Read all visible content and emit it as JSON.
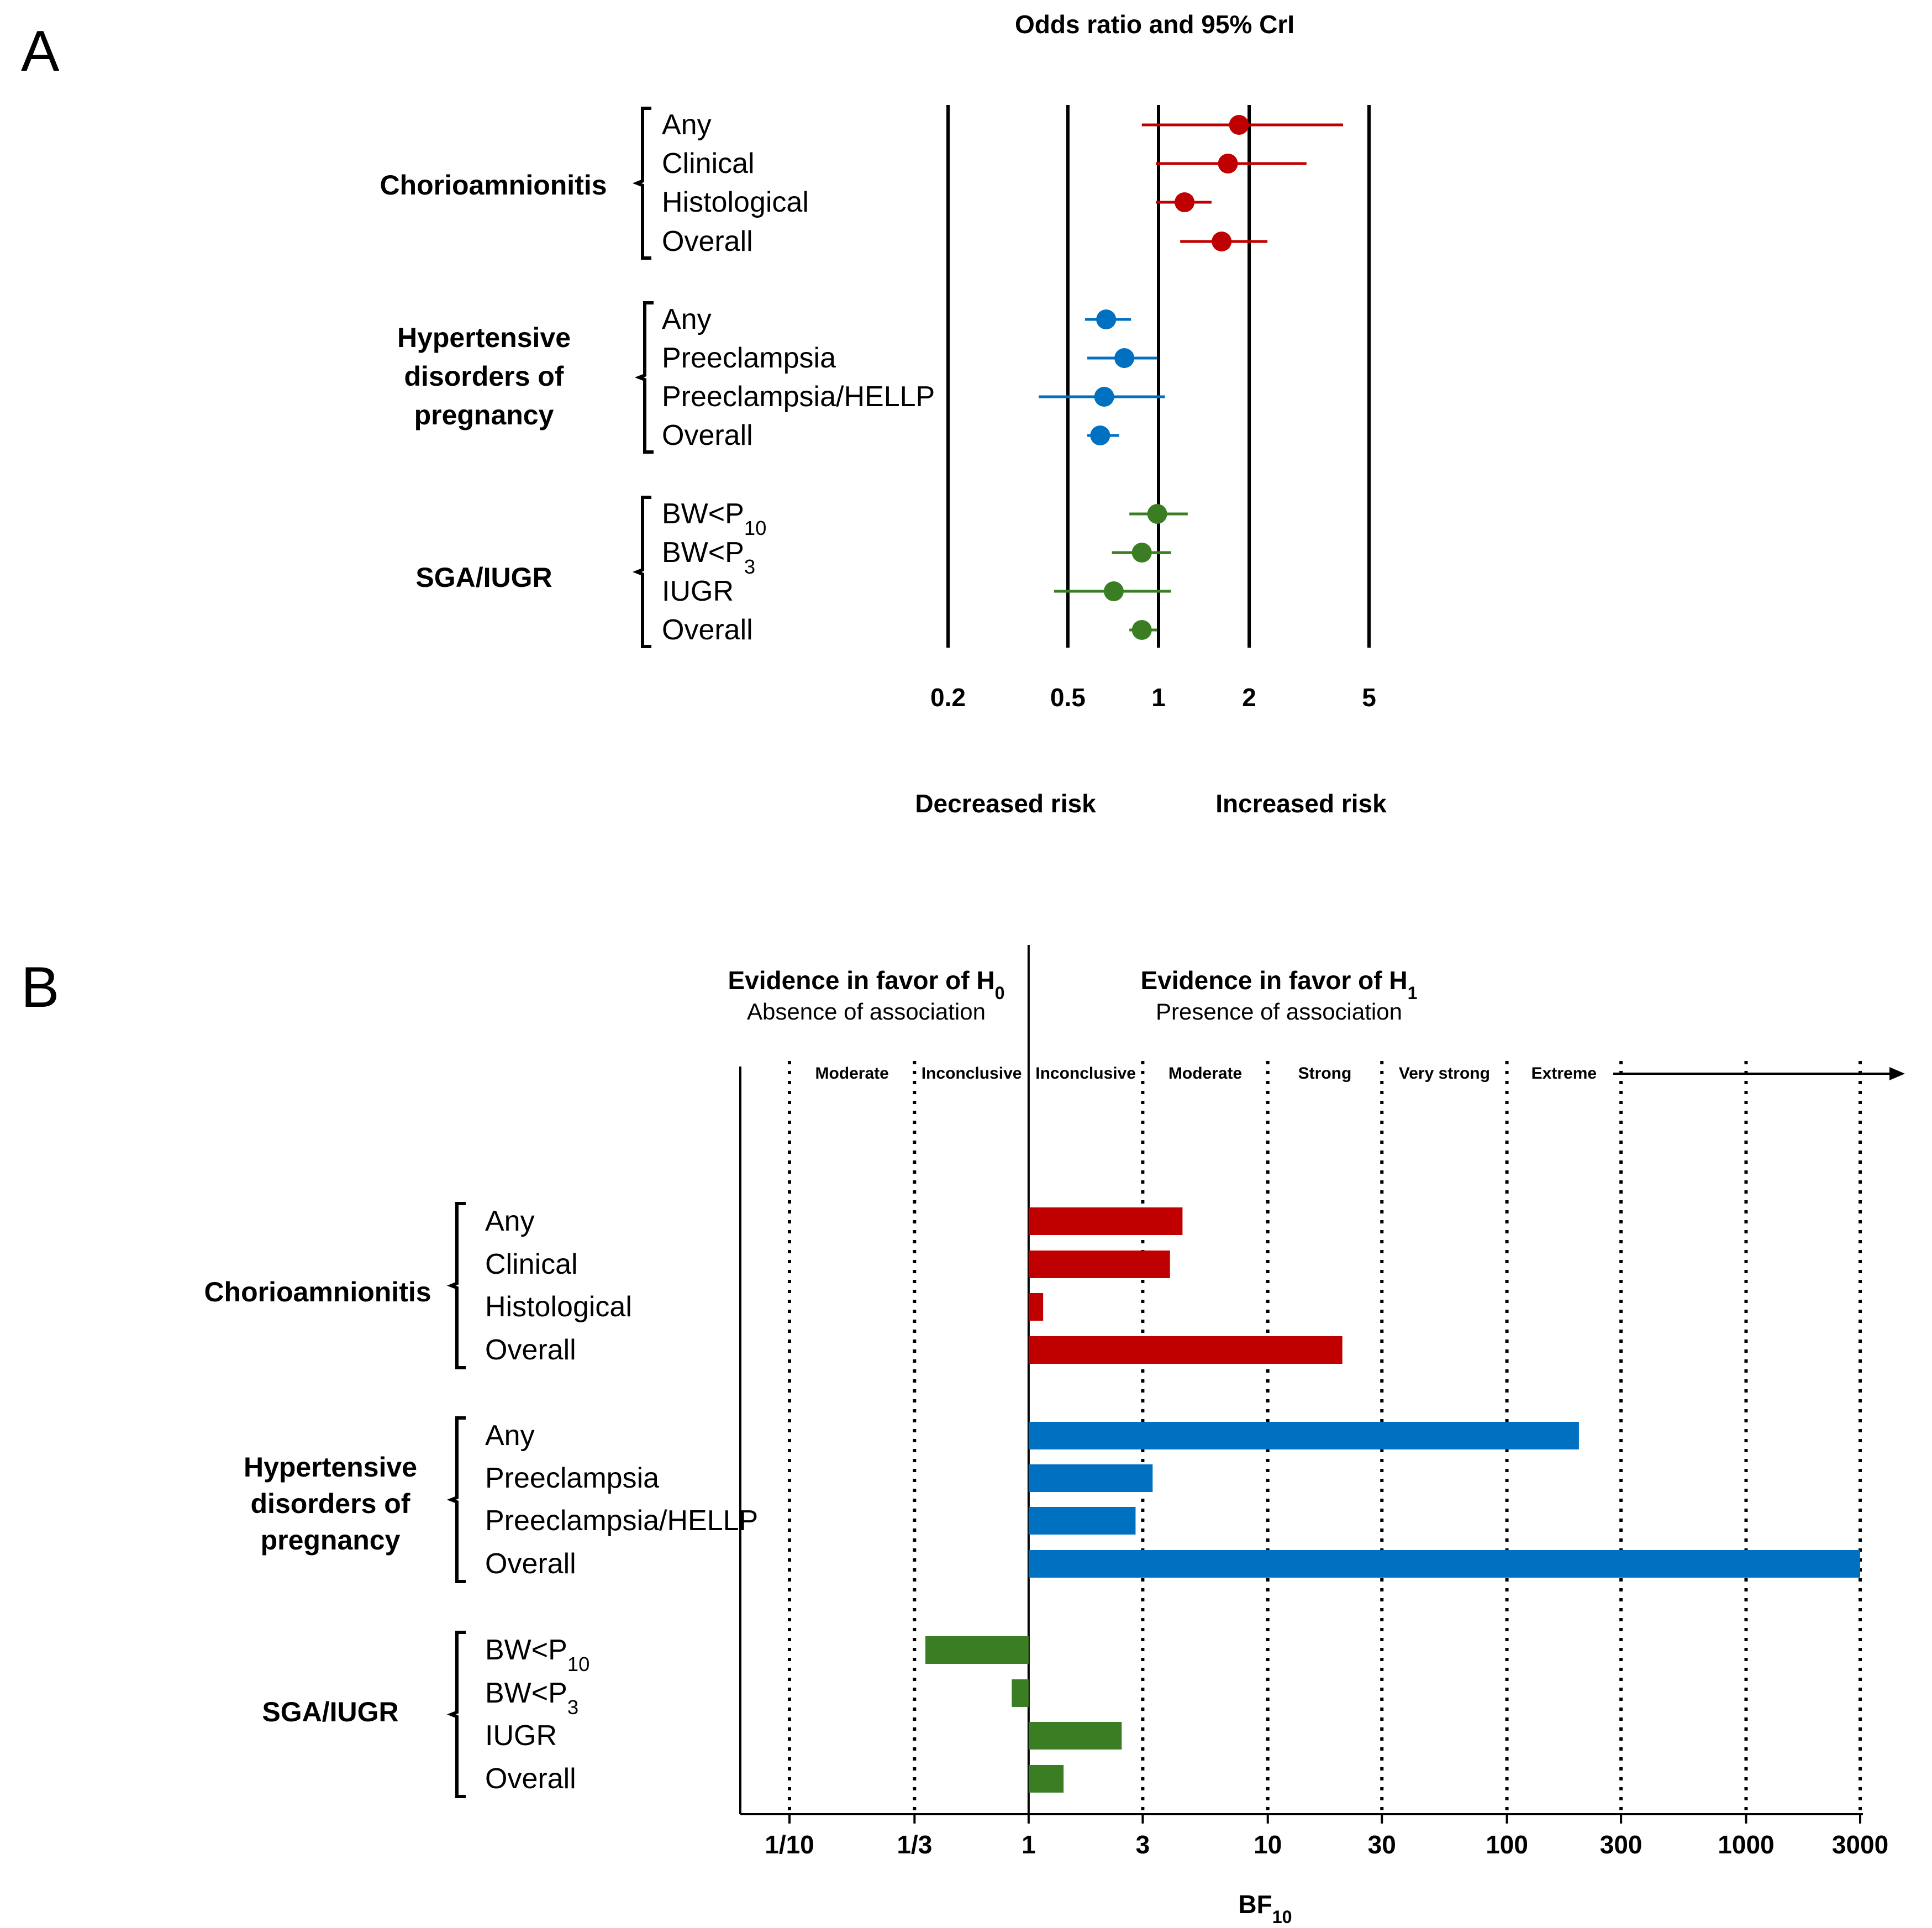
{
  "figure": {
    "panel_a_letter": "A",
    "panel_b_letter": "B"
  },
  "colors": {
    "chorioamnionitis": "#c00000",
    "hypertensive": "#0070c0",
    "sga": "#3a7d22",
    "axis": "#000000"
  },
  "chart_data": [
    {
      "id": "panel-a",
      "type": "forest",
      "title": "Odds ratio and 95% CrI",
      "scale": "log",
      "xlim": [
        0.2,
        5
      ],
      "xticks": [
        0.2,
        0.5,
        1,
        2,
        5
      ],
      "tick_labels": [
        "0.2",
        "0.5",
        "1",
        "2",
        "5"
      ],
      "left_caption": "Decreased risk",
      "right_caption": "Increased risk",
      "groups": [
        {
          "name_lines": [
            "Chorioamnionitis"
          ],
          "color_key": "chorioamnionitis",
          "rows": [
            {
              "label": "Any",
              "or": 1.85,
              "lo": 0.88,
              "hi": 4.1
            },
            {
              "label": "Clinical",
              "or": 1.7,
              "lo": 0.98,
              "hi": 3.1
            },
            {
              "label": "Histological",
              "or": 1.22,
              "lo": 0.98,
              "hi": 1.5
            },
            {
              "label": "Overall",
              "or": 1.62,
              "lo": 1.18,
              "hi": 2.3
            }
          ]
        },
        {
          "name_lines": [
            "Hypertensive",
            "disorders of",
            "pregnancy"
          ],
          "color_key": "hypertensive",
          "rows": [
            {
              "label": "Any",
              "or": 0.67,
              "lo": 0.57,
              "hi": 0.81
            },
            {
              "label": "Preeclampsia",
              "or": 0.77,
              "lo": 0.58,
              "hi": 0.99
            },
            {
              "label": "Preeclampsia/HELLP",
              "or": 0.66,
              "lo": 0.4,
              "hi": 1.05
            },
            {
              "label": "Overall",
              "or": 0.64,
              "lo": 0.58,
              "hi": 0.74
            }
          ]
        },
        {
          "name_lines": [
            "SGA/IUGR"
          ],
          "color_key": "sga",
          "rows": [
            {
              "label": "BW<P",
              "label_sub": "10",
              "or": 0.99,
              "lo": 0.8,
              "hi": 1.25
            },
            {
              "label": "BW<P",
              "label_sub": "3",
              "or": 0.88,
              "lo": 0.7,
              "hi": 1.1
            },
            {
              "label": "IUGR",
              "or": 0.71,
              "lo": 0.45,
              "hi": 1.1
            },
            {
              "label": "Overall",
              "or": 0.88,
              "lo": 0.8,
              "hi": 0.99
            }
          ]
        }
      ]
    },
    {
      "id": "panel-b",
      "type": "bar",
      "orientation": "horizontal",
      "scale": "log",
      "xlim": [
        0.1,
        3000
      ],
      "xlabel": "BF",
      "xlabel_sub": "10",
      "xticks": [
        0.1,
        0.3333,
        1,
        3,
        10,
        30,
        100,
        300,
        1000,
        3000
      ],
      "tick_labels": [
        "1/10",
        "1/3",
        "1",
        "3",
        "10",
        "30",
        "100",
        "300",
        "1000",
        "3000"
      ],
      "h0_title": "Evidence in favor of H",
      "h0_title_sub": "0",
      "h0_subtitle": "Absence of association",
      "h1_title": "Evidence in favor of H",
      "h1_title_sub": "1",
      "h1_subtitle": "Presence of association",
      "zone_labels": [
        "Moderate",
        "Inconclusive",
        "Inconclusive",
        "Moderate",
        "Strong",
        "Very strong",
        "Extreme"
      ],
      "groups": [
        {
          "name_lines": [
            "Chorioamnionitis"
          ],
          "color_key": "chorioamnionitis",
          "rows": [
            {
              "label": "Any",
              "bf10": 4.4
            },
            {
              "label": "Clinical",
              "bf10": 3.9
            },
            {
              "label": "Histological",
              "bf10": 1.15
            },
            {
              "label": "Overall",
              "bf10": 20.5
            }
          ]
        },
        {
          "name_lines": [
            "Hypertensive",
            "disorders of",
            "pregnancy"
          ],
          "color_key": "hypertensive",
          "rows": [
            {
              "label": "Any",
              "bf10": 200
            },
            {
              "label": "Preeclampsia",
              "bf10": 3.3
            },
            {
              "label": "Preeclampsia/HELLP",
              "bf10": 2.8
            },
            {
              "label": "Overall",
              "bf10": 3000
            }
          ]
        },
        {
          "name_lines": [
            "SGA/IUGR"
          ],
          "color_key": "sga",
          "rows": [
            {
              "label": "BW<P",
              "label_sub": "10",
              "bf10": 0.37
            },
            {
              "label": "BW<P",
              "label_sub": "3",
              "bf10": 0.85
            },
            {
              "label": "IUGR",
              "bf10": 2.45
            },
            {
              "label": "Overall",
              "bf10": 1.4
            }
          ]
        }
      ]
    }
  ]
}
